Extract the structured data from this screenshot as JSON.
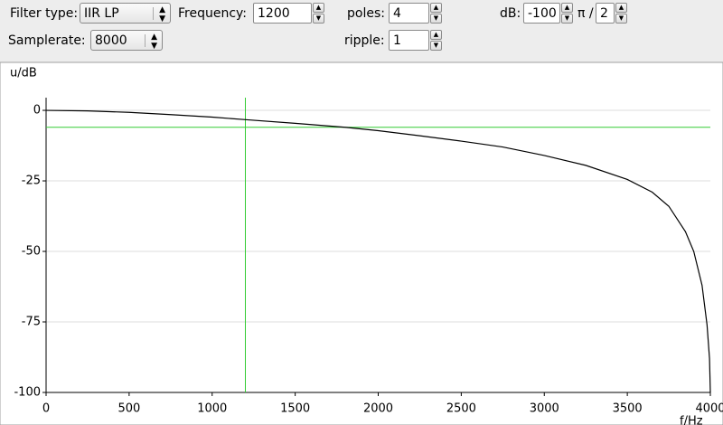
{
  "controls": {
    "filter_type": {
      "label": "Filter type:",
      "value": "IIR LP"
    },
    "frequency": {
      "label": "Frequency:",
      "value": "1200"
    },
    "poles": {
      "label": "poles:",
      "value": "4"
    },
    "db": {
      "label": "dB:",
      "value": "-100"
    },
    "pi": {
      "label": "π /",
      "value": "2"
    },
    "samplerate": {
      "label": "Samplerate:",
      "value": "8000"
    },
    "ripple": {
      "label": "ripple:",
      "value": "1"
    }
  },
  "chart_data": {
    "type": "line",
    "y_label": "u/dB",
    "x_label": "f/Hz",
    "x": [
      0,
      250,
      500,
      750,
      1000,
      1200,
      1500,
      1800,
      2000,
      2250,
      2500,
      2750,
      3000,
      3250,
      3500,
      3650,
      3750,
      3850,
      3900,
      3950,
      3980,
      3995,
      4000
    ],
    "values": [
      0,
      -0.2,
      -0.7,
      -1.5,
      -2.4,
      -3.3,
      -4.6,
      -6,
      -7.2,
      -9,
      -10.9,
      -13,
      -16,
      -19.5,
      -24.5,
      -29,
      -34,
      -43,
      -50,
      -62,
      -76,
      -88,
      -100
    ],
    "color": "#000000",
    "xlim": [
      0,
      4000
    ],
    "xticks": [
      0,
      500,
      1000,
      1500,
      2000,
      2500,
      3000,
      3500,
      4000
    ],
    "ylim": [
      -100,
      4.5
    ],
    "yticks": [
      0,
      -25,
      -50,
      -75,
      -100
    ],
    "grid": true,
    "markers": {
      "x": 1200,
      "y": -6,
      "color": "#33cc33"
    }
  }
}
